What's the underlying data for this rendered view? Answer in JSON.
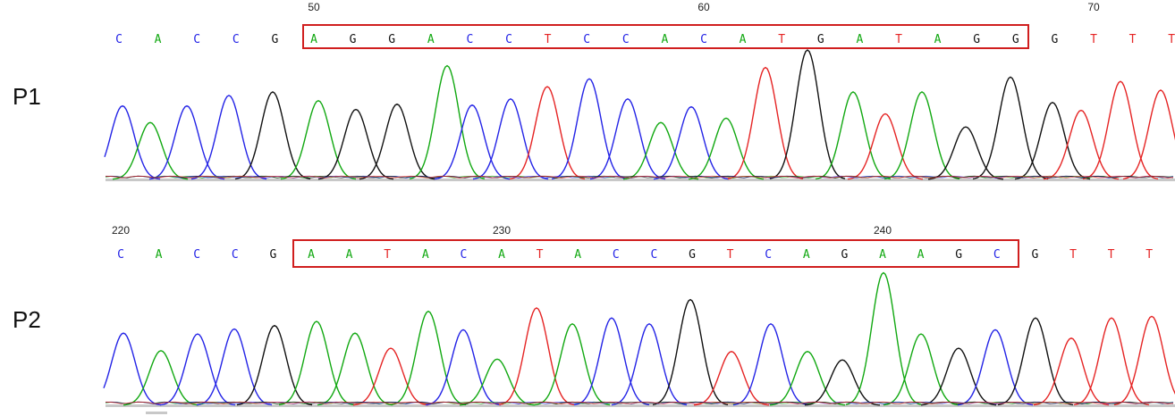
{
  "colors": {
    "A": "#11a811",
    "C": "#2323e6",
    "G": "#111111",
    "T": "#e52424",
    "box": "#d01e1e",
    "baseline": "#c8c8c8"
  },
  "chart_data": [
    {
      "type": "chromatogram",
      "panel_label": "P1",
      "bases": [
        "C",
        "A",
        "C",
        "C",
        "G",
        "A",
        "G",
        "G",
        "A",
        "C",
        "C",
        "T",
        "C",
        "C",
        "A",
        "C",
        "A",
        "T",
        "G",
        "A",
        "T",
        "A",
        "G",
        "G",
        "G",
        "T",
        "T",
        "T"
      ],
      "highlight": {
        "start": 5,
        "end": 23
      },
      "position_ticks": [
        {
          "label": "50",
          "base_index": 5
        },
        {
          "label": "60",
          "base_index": 15
        },
        {
          "label": "70",
          "base_index": 25
        }
      ],
      "peaks": [
        {
          "base": "C",
          "height": 0.84,
          "pos": 137
        },
        {
          "base": "A",
          "height": 0.65,
          "pos": 168
        },
        {
          "base": "C",
          "height": 0.84,
          "pos": 209
        },
        {
          "base": "C",
          "height": 0.96,
          "pos": 256
        },
        {
          "base": "G",
          "height": 1.0,
          "pos": 305
        },
        {
          "base": "A",
          "height": 0.9,
          "pos": 356
        },
        {
          "base": "G",
          "height": 0.8,
          "pos": 398
        },
        {
          "base": "G",
          "height": 0.86,
          "pos": 444
        },
        {
          "base": "A",
          "height": 1.3,
          "pos": 500
        },
        {
          "base": "C",
          "height": 0.85,
          "pos": 528
        },
        {
          "base": "C",
          "height": 0.92,
          "pos": 571
        },
        {
          "base": "T",
          "height": 1.06,
          "pos": 612
        },
        {
          "base": "C",
          "height": 1.15,
          "pos": 659
        },
        {
          "base": "C",
          "height": 0.92,
          "pos": 702
        },
        {
          "base": "A",
          "height": 0.65,
          "pos": 739
        },
        {
          "base": "C",
          "height": 0.83,
          "pos": 773
        },
        {
          "base": "A",
          "height": 0.7,
          "pos": 812
        },
        {
          "base": "T",
          "height": 1.28,
          "pos": 856
        },
        {
          "base": "G",
          "height": 1.48,
          "pos": 903
        },
        {
          "base": "A",
          "height": 1.0,
          "pos": 954
        },
        {
          "base": "T",
          "height": 0.75,
          "pos": 990
        },
        {
          "base": "A",
          "height": 1.0,
          "pos": 1031
        },
        {
          "base": "G",
          "height": 0.6,
          "pos": 1080
        },
        {
          "base": "G",
          "height": 1.17,
          "pos": 1130
        },
        {
          "base": "G",
          "height": 0.88,
          "pos": 1177
        },
        {
          "base": "T",
          "height": 0.79,
          "pos": 1209
        },
        {
          "base": "T",
          "height": 1.12,
          "pos": 1253
        },
        {
          "base": "T",
          "height": 1.02,
          "pos": 1298
        }
      ]
    },
    {
      "type": "chromatogram",
      "panel_label": "P2",
      "bases": [
        "C",
        "A",
        "C",
        "C",
        "G",
        "A",
        "A",
        "T",
        "A",
        "C",
        "A",
        "T",
        "A",
        "C",
        "C",
        "G",
        "T",
        "C",
        "A",
        "G",
        "A",
        "A",
        "G",
        "C",
        "G",
        "T",
        "T",
        "T"
      ],
      "highlight": {
        "start": 5,
        "end": 23
      },
      "position_ticks": [
        {
          "label": "220",
          "base_index": 0
        },
        {
          "label": "230",
          "base_index": 10
        },
        {
          "label": "240",
          "base_index": 20
        }
      ],
      "peaks": [
        {
          "base": "C",
          "height": 0.86,
          "pos": 138
        },
        {
          "base": "A",
          "height": 0.65,
          "pos": 180
        },
        {
          "base": "C",
          "height": 0.85,
          "pos": 221
        },
        {
          "base": "C",
          "height": 0.91,
          "pos": 262
        },
        {
          "base": "G",
          "height": 0.95,
          "pos": 307
        },
        {
          "base": "A",
          "height": 1.0,
          "pos": 354
        },
        {
          "base": "A",
          "height": 0.86,
          "pos": 397
        },
        {
          "base": "T",
          "height": 0.68,
          "pos": 437
        },
        {
          "base": "A",
          "height": 1.12,
          "pos": 479
        },
        {
          "base": "C",
          "height": 0.9,
          "pos": 518
        },
        {
          "base": "A",
          "height": 0.55,
          "pos": 556
        },
        {
          "base": "T",
          "height": 1.16,
          "pos": 600
        },
        {
          "base": "A",
          "height": 0.97,
          "pos": 640
        },
        {
          "base": "C",
          "height": 1.04,
          "pos": 684
        },
        {
          "base": "C",
          "height": 0.97,
          "pos": 726
        },
        {
          "base": "G",
          "height": 1.26,
          "pos": 772
        },
        {
          "base": "T",
          "height": 0.64,
          "pos": 818
        },
        {
          "base": "C",
          "height": 0.97,
          "pos": 862
        },
        {
          "base": "A",
          "height": 0.64,
          "pos": 903
        },
        {
          "base": "G",
          "height": 0.54,
          "pos": 942
        },
        {
          "base": "A",
          "height": 1.58,
          "pos": 988
        },
        {
          "base": "A",
          "height": 0.85,
          "pos": 1030
        },
        {
          "base": "G",
          "height": 0.68,
          "pos": 1072
        },
        {
          "base": "C",
          "height": 0.9,
          "pos": 1113
        },
        {
          "base": "G",
          "height": 1.04,
          "pos": 1158
        },
        {
          "base": "T",
          "height": 0.8,
          "pos": 1198
        },
        {
          "base": "T",
          "height": 1.04,
          "pos": 1243
        },
        {
          "base": "T",
          "height": 1.06,
          "pos": 1288
        }
      ]
    }
  ]
}
